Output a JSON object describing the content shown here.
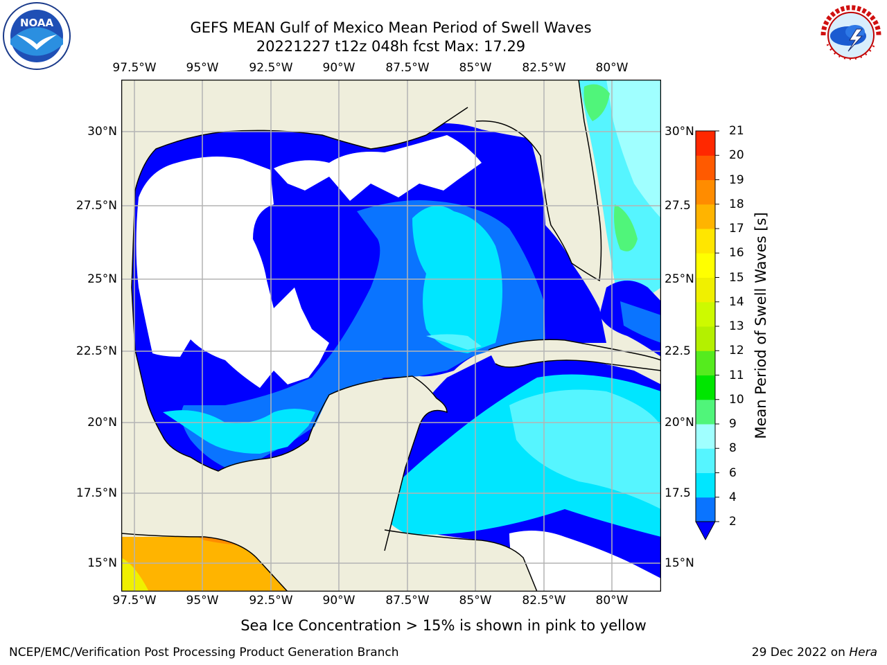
{
  "header": {
    "title_line1": "GEFS MEAN Gulf of Mexico Mean Period of Swell Waves",
    "title_line2": "20221227 t12z 048h fcst   Max: 17.29"
  },
  "logos": {
    "left": {
      "name": "noaa-logo",
      "text": "NOAA"
    },
    "right": {
      "name": "nws-logo",
      "text": "NATIONAL WEATHER SERVICE"
    }
  },
  "map": {
    "lon_labels": [
      "97.5°W",
      "95°W",
      "92.5°W",
      "90°W",
      "87.5°W",
      "85°W",
      "82.5°W",
      "80°W"
    ],
    "lat_labels_left": [
      "30°N",
      "27.5°N",
      "25°N",
      "22.5°N",
      "20°N",
      "17.5°N",
      "15°N"
    ],
    "lat_labels_right": [
      "30°N",
      "27.5",
      "25°N",
      "22.5",
      "20°N",
      "17.5",
      "15°N"
    ],
    "colors": {
      "land": "#efeedc",
      "ocean_nodata": "#ffffff",
      "coast": "#000000",
      "grid": "#b4b4b4"
    }
  },
  "colorbar": {
    "title": "Mean Period of Swell Waves [s]",
    "levels": [
      "2",
      "4",
      "6",
      "8",
      "9",
      "10",
      "11",
      "12",
      "13",
      "14",
      "15",
      "16",
      "17",
      "18",
      "19",
      "20",
      "21"
    ],
    "colors": [
      "#0a74ff",
      "#00e6ff",
      "#56f5ff",
      "#a0ffff",
      "#50f57a",
      "#00e600",
      "#55eb1e",
      "#b4f000",
      "#cdfa00",
      "#f0f000",
      "#ffff00",
      "#ffe600",
      "#ffb400",
      "#ff8c00",
      "#ff5a00",
      "#ff2800"
    ],
    "under_color": "#0000ff"
  },
  "caption": "Sea Ice Concentration > 15% is shown in pink to yellow",
  "footer": {
    "left": "NCEP/EMC/Verification Post Processing Product Generation Branch",
    "right_date": "29 Dec 2022 on ",
    "right_host": "Hera"
  }
}
